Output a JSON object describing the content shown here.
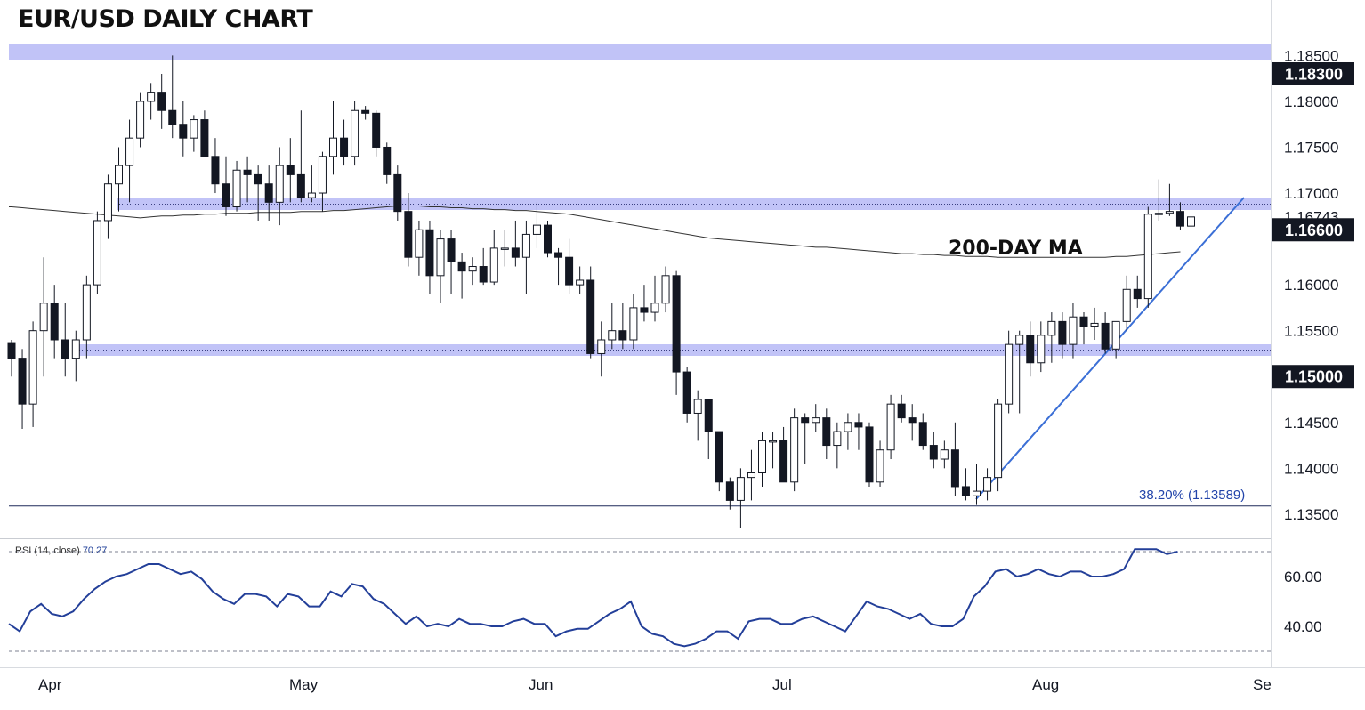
{
  "title": "EUR/USD DAILY CHART",
  "ma_label": "200-DAY MA",
  "fib_label": "38.20% (1.13589)",
  "rsi": {
    "label_prefix": "RSI (14, close)",
    "label_value": "70.27",
    "tick_labels": [
      "60.00",
      "40.00"
    ],
    "values": [
      41,
      38,
      46,
      49,
      45,
      44,
      46,
      51,
      55,
      58,
      60,
      61,
      63,
      65,
      65,
      63,
      61,
      62,
      59,
      54,
      51,
      49,
      53,
      53,
      52,
      48,
      53,
      52,
      48,
      48,
      54,
      52,
      57,
      56,
      51,
      49,
      45,
      41,
      44,
      40,
      41,
      40,
      43,
      41,
      41,
      40,
      40,
      42,
      43,
      41,
      41,
      36,
      38,
      39,
      39,
      42,
      45,
      47,
      50,
      40,
      37,
      36,
      33,
      32,
      33,
      35,
      38,
      38,
      35,
      42,
      43,
      43,
      41,
      41,
      43,
      44,
      42,
      40,
      38,
      44,
      50,
      48,
      47,
      45,
      43,
      45,
      41,
      40,
      40,
      43,
      52,
      56,
      62,
      63,
      60,
      61,
      63,
      61,
      60,
      62,
      62,
      60,
      60,
      61,
      63,
      71,
      71,
      71,
      69,
      70
    ]
  },
  "price_axis": {
    "ticks": [
      "1.18500",
      "1.18000",
      "1.17500",
      "1.17000",
      "1.16000",
      "1.15500",
      "1.14500",
      "1.14000",
      "1.13500"
    ],
    "current_price": "1.16743",
    "badges": [
      "1.18300",
      "1.16600",
      "1.15000"
    ],
    "badge_color": "#131722",
    "zone_color": "#b6b9f6"
  },
  "time_axis": {
    "labels": [
      "Apr",
      "May",
      "Jun",
      "Jul",
      "Aug",
      "Se"
    ]
  },
  "colors": {
    "up_candle": "#ffffff",
    "down_candle": "#131722",
    "trendline": "#3b6fd6",
    "rsi_line": "#233f99",
    "ma_line": "#333333"
  },
  "chart_data": {
    "type": "candlestick",
    "title": "EUR/USD DAILY CHART",
    "x": [
      "Apr",
      "May",
      "Jun",
      "Jul",
      "Aug",
      "Se"
    ],
    "horizontal_levels": [
      1.183,
      1.166,
      1.15,
      1.13589
    ],
    "moving_average": {
      "name": "200-DAY MA",
      "values": [
        1.1685,
        1.1684,
        1.1683,
        1.1682,
        1.1681,
        1.168,
        1.1679,
        1.1678,
        1.1677,
        1.1676,
        1.1675,
        1.1674,
        1.1673,
        1.1674,
        1.1675,
        1.1675,
        1.1676,
        1.1676,
        1.1677,
        1.1677,
        1.1678,
        1.1678,
        1.1678,
        1.1679,
        1.1679,
        1.1679,
        1.1679,
        1.168,
        1.168,
        1.168,
        1.1681,
        1.1681,
        1.1682,
        1.1683,
        1.1684,
        1.1685,
        1.1686,
        1.1686,
        1.1686,
        1.1685,
        1.1685,
        1.1684,
        1.1684,
        1.1683,
        1.1683,
        1.1682,
        1.1682,
        1.1681,
        1.1681,
        1.168,
        1.1679,
        1.1678,
        1.1677,
        1.1675,
        1.1673,
        1.1671,
        1.1669,
        1.1667,
        1.1665,
        1.1663,
        1.1661,
        1.1659,
        1.1657,
        1.1655,
        1.1653,
        1.1651,
        1.165,
        1.1649,
        1.1648,
        1.1647,
        1.1646,
        1.1645,
        1.1644,
        1.1643,
        1.1642,
        1.1641,
        1.1641,
        1.164,
        1.1639,
        1.1638,
        1.1637,
        1.1636,
        1.1635,
        1.1634,
        1.1634,
        1.1633,
        1.1633,
        1.1632,
        1.1632,
        1.1631,
        1.1631,
        1.1631,
        1.163,
        1.163,
        1.163,
        1.163,
        1.163,
        1.163,
        1.163,
        1.163,
        1.163,
        1.163,
        1.163,
        1.1631,
        1.1631,
        1.1632,
        1.1633,
        1.1634,
        1.1635,
        1.1636
      ]
    },
    "ohlc": [
      [
        1.1537,
        1.154,
        1.15,
        1.152
      ],
      [
        1.152,
        1.153,
        1.1443,
        1.147
      ],
      [
        1.147,
        1.156,
        1.1445,
        1.155
      ],
      [
        1.155,
        1.163,
        1.15,
        1.158
      ],
      [
        1.158,
        1.16,
        1.152,
        1.154
      ],
      [
        1.154,
        1.158,
        1.15,
        1.152
      ],
      [
        1.152,
        1.155,
        1.1495,
        1.154
      ],
      [
        1.154,
        1.161,
        1.152,
        1.16
      ],
      [
        1.16,
        1.168,
        1.159,
        1.167
      ],
      [
        1.167,
        1.172,
        1.165,
        1.171
      ],
      [
        1.171,
        1.175,
        1.168,
        1.173
      ],
      [
        1.173,
        1.178,
        1.169,
        1.176
      ],
      [
        1.176,
        1.181,
        1.175,
        1.18
      ],
      [
        1.18,
        1.182,
        1.178,
        1.181
      ],
      [
        1.181,
        1.183,
        1.177,
        1.179
      ],
      [
        1.179,
        1.185,
        1.176,
        1.1775
      ],
      [
        1.1775,
        1.18,
        1.174,
        1.176
      ],
      [
        1.176,
        1.1785,
        1.1745,
        1.178
      ],
      [
        1.178,
        1.179,
        1.174,
        1.174
      ],
      [
        1.174,
        1.176,
        1.17,
        1.171
      ],
      [
        1.171,
        1.174,
        1.1675,
        1.1685
      ],
      [
        1.1685,
        1.1735,
        1.168,
        1.1725
      ],
      [
        1.1725,
        1.174,
        1.169,
        1.172
      ],
      [
        1.172,
        1.173,
        1.167,
        1.171
      ],
      [
        1.171,
        1.173,
        1.167,
        1.169
      ],
      [
        1.169,
        1.175,
        1.1665,
        1.173
      ],
      [
        1.173,
        1.176,
        1.169,
        1.172
      ],
      [
        1.172,
        1.179,
        1.169,
        1.1695
      ],
      [
        1.1695,
        1.173,
        1.169,
        1.17
      ],
      [
        1.17,
        1.1745,
        1.168,
        1.174
      ],
      [
        1.174,
        1.18,
        1.172,
        1.176
      ],
      [
        1.176,
        1.178,
        1.173,
        1.174
      ],
      [
        1.174,
        1.18,
        1.173,
        1.179
      ],
      [
        1.179,
        1.1795,
        1.178,
        1.1787
      ],
      [
        1.1787,
        1.179,
        1.174,
        1.175
      ],
      [
        1.175,
        1.1755,
        1.171,
        1.172
      ],
      [
        1.172,
        1.173,
        1.167,
        1.168
      ],
      [
        1.168,
        1.17,
        1.162,
        1.163
      ],
      [
        1.163,
        1.167,
        1.161,
        1.166
      ],
      [
        1.166,
        1.167,
        1.159,
        1.161
      ],
      [
        1.161,
        1.166,
        1.158,
        1.165
      ],
      [
        1.165,
        1.166,
        1.159,
        1.1625
      ],
      [
        1.1625,
        1.1635,
        1.1585,
        1.1615
      ],
      [
        1.1615,
        1.163,
        1.16,
        1.162
      ],
      [
        1.162,
        1.164,
        1.16,
        1.1603
      ],
      [
        1.1603,
        1.166,
        1.16,
        1.164
      ],
      [
        1.164,
        1.166,
        1.162,
        1.164
      ],
      [
        1.164,
        1.167,
        1.162,
        1.163
      ],
      [
        1.163,
        1.167,
        1.159,
        1.1655
      ],
      [
        1.1655,
        1.169,
        1.164,
        1.1665
      ],
      [
        1.1665,
        1.167,
        1.163,
        1.1635
      ],
      [
        1.1635,
        1.164,
        1.16,
        1.163
      ],
      [
        1.163,
        1.165,
        1.159,
        1.16
      ],
      [
        1.16,
        1.162,
        1.159,
        1.1605
      ],
      [
        1.1605,
        1.162,
        1.152,
        1.1525
      ],
      [
        1.1525,
        1.156,
        1.15,
        1.154
      ],
      [
        1.154,
        1.158,
        1.153,
        1.155
      ],
      [
        1.155,
        1.158,
        1.153,
        1.154
      ],
      [
        1.154,
        1.159,
        1.153,
        1.1575
      ],
      [
        1.1575,
        1.16,
        1.156,
        1.157
      ],
      [
        1.157,
        1.161,
        1.156,
        1.158
      ],
      [
        1.158,
        1.162,
        1.157,
        1.161
      ],
      [
        1.161,
        1.1615,
        1.148,
        1.1505
      ],
      [
        1.1505,
        1.151,
        1.145,
        1.146
      ],
      [
        1.146,
        1.1485,
        1.143,
        1.1475
      ],
      [
        1.1475,
        1.1475,
        1.141,
        1.144
      ],
      [
        1.144,
        1.144,
        1.1375,
        1.1385
      ],
      [
        1.1385,
        1.139,
        1.1355,
        1.1365
      ],
      [
        1.1365,
        1.14,
        1.1335,
        1.139
      ],
      [
        1.139,
        1.142,
        1.1365,
        1.1395
      ],
      [
        1.1395,
        1.144,
        1.138,
        1.143
      ],
      [
        1.143,
        1.144,
        1.14,
        1.143
      ],
      [
        1.143,
        1.1445,
        1.1385,
        1.1385
      ],
      [
        1.1385,
        1.1465,
        1.1375,
        1.1455
      ],
      [
        1.1455,
        1.146,
        1.1405,
        1.145
      ],
      [
        1.145,
        1.147,
        1.144,
        1.1455
      ],
      [
        1.1455,
        1.1465,
        1.141,
        1.1425
      ],
      [
        1.1425,
        1.145,
        1.14,
        1.144
      ],
      [
        1.144,
        1.146,
        1.142,
        1.145
      ],
      [
        1.145,
        1.146,
        1.142,
        1.1445
      ],
      [
        1.1445,
        1.145,
        1.138,
        1.1385
      ],
      [
        1.1385,
        1.143,
        1.138,
        1.142
      ],
      [
        1.142,
        1.148,
        1.141,
        1.147
      ],
      [
        1.147,
        1.148,
        1.145,
        1.1455
      ],
      [
        1.1455,
        1.147,
        1.143,
        1.145
      ],
      [
        1.145,
        1.146,
        1.142,
        1.1425
      ],
      [
        1.1425,
        1.144,
        1.14,
        1.141
      ],
      [
        1.141,
        1.143,
        1.14,
        1.142
      ],
      [
        1.142,
        1.145,
        1.137,
        1.138
      ],
      [
        1.138,
        1.14,
        1.1365,
        1.137
      ],
      [
        1.137,
        1.1405,
        1.136,
        1.1375
      ],
      [
        1.1375,
        1.14,
        1.1365,
        1.139
      ],
      [
        1.139,
        1.1475,
        1.1375,
        1.147
      ],
      [
        1.147,
        1.155,
        1.146,
        1.1535
      ],
      [
        1.1535,
        1.155,
        1.146,
        1.1545
      ],
      [
        1.1545,
        1.156,
        1.15,
        1.1515
      ],
      [
        1.1515,
        1.156,
        1.1505,
        1.1545
      ],
      [
        1.1545,
        1.157,
        1.1515,
        1.156
      ],
      [
        1.156,
        1.157,
        1.152,
        1.1535
      ],
      [
        1.1535,
        1.158,
        1.152,
        1.1565
      ],
      [
        1.1565,
        1.157,
        1.1535,
        1.1555
      ],
      [
        1.1555,
        1.1575,
        1.154,
        1.1558
      ],
      [
        1.1558,
        1.157,
        1.1525,
        1.153
      ],
      [
        1.153,
        1.156,
        1.152,
        1.156
      ],
      [
        1.156,
        1.161,
        1.155,
        1.1595
      ],
      [
        1.1595,
        1.161,
        1.1575,
        1.1585
      ],
      [
        1.1585,
        1.1685,
        1.1575,
        1.1677
      ],
      [
        1.1677,
        1.1715,
        1.167,
        1.1678
      ],
      [
        1.1678,
        1.171,
        1.1675,
        1.168
      ],
      [
        1.168,
        1.169,
        1.166,
        1.1664
      ],
      [
        1.1664,
        1.168,
        1.166,
        1.1674
      ]
    ],
    "rsi_levels": [
      70,
      30
    ],
    "ylim": [
      1.132,
      1.187
    ]
  }
}
